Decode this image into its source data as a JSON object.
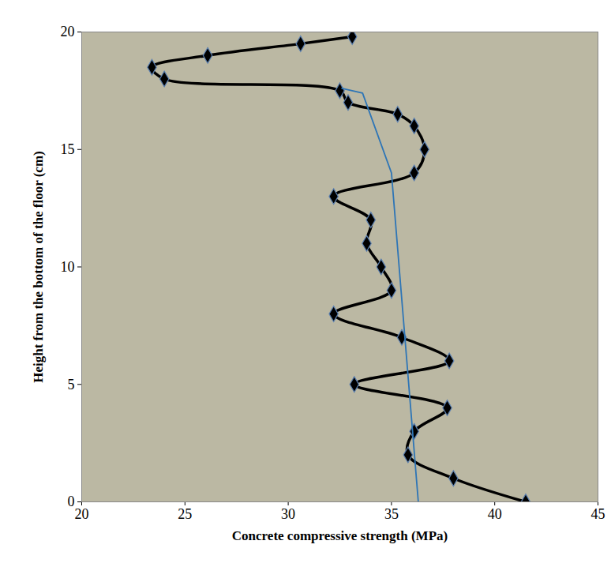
{
  "chart_data": {
    "type": "line",
    "x_label": "Concrete compressive strength (MPa)",
    "y_label": "Height from the bottom of the floor (cm)",
    "xlim": [
      20,
      45
    ],
    "xticks": [
      20,
      25,
      30,
      35,
      40,
      45
    ],
    "ylim": [
      0,
      20
    ],
    "yticks": [
      0,
      5,
      10,
      15,
      20
    ],
    "series": [
      {
        "color": "#000000",
        "marker": "diamond",
        "x": [
          33.1,
          30.6,
          26.1,
          23.4,
          24.0,
          32.5,
          32.9,
          35.3,
          36.1,
          36.6,
          36.1,
          32.2,
          34.0,
          33.8,
          34.5,
          35.0,
          32.2,
          35.5,
          37.8,
          33.2,
          37.7,
          36.1,
          35.8,
          38.0,
          41.5
        ],
        "y": [
          19.8,
          19.5,
          19.0,
          18.5,
          18.0,
          17.5,
          17.0,
          16.5,
          16.0,
          15.0,
          14.0,
          13.0,
          12.0,
          11.0,
          10.0,
          9.0,
          8.0,
          7.0,
          6.0,
          5.0,
          4.0,
          3.0,
          2.0,
          1.0,
          0
        ]
      },
      {
        "color": "#2e75b6",
        "marker": "none",
        "x": [
          36.3,
          35.0,
          33.6,
          32.6
        ],
        "y": [
          0,
          14.0,
          17.4,
          17.6
        ]
      }
    ]
  }
}
